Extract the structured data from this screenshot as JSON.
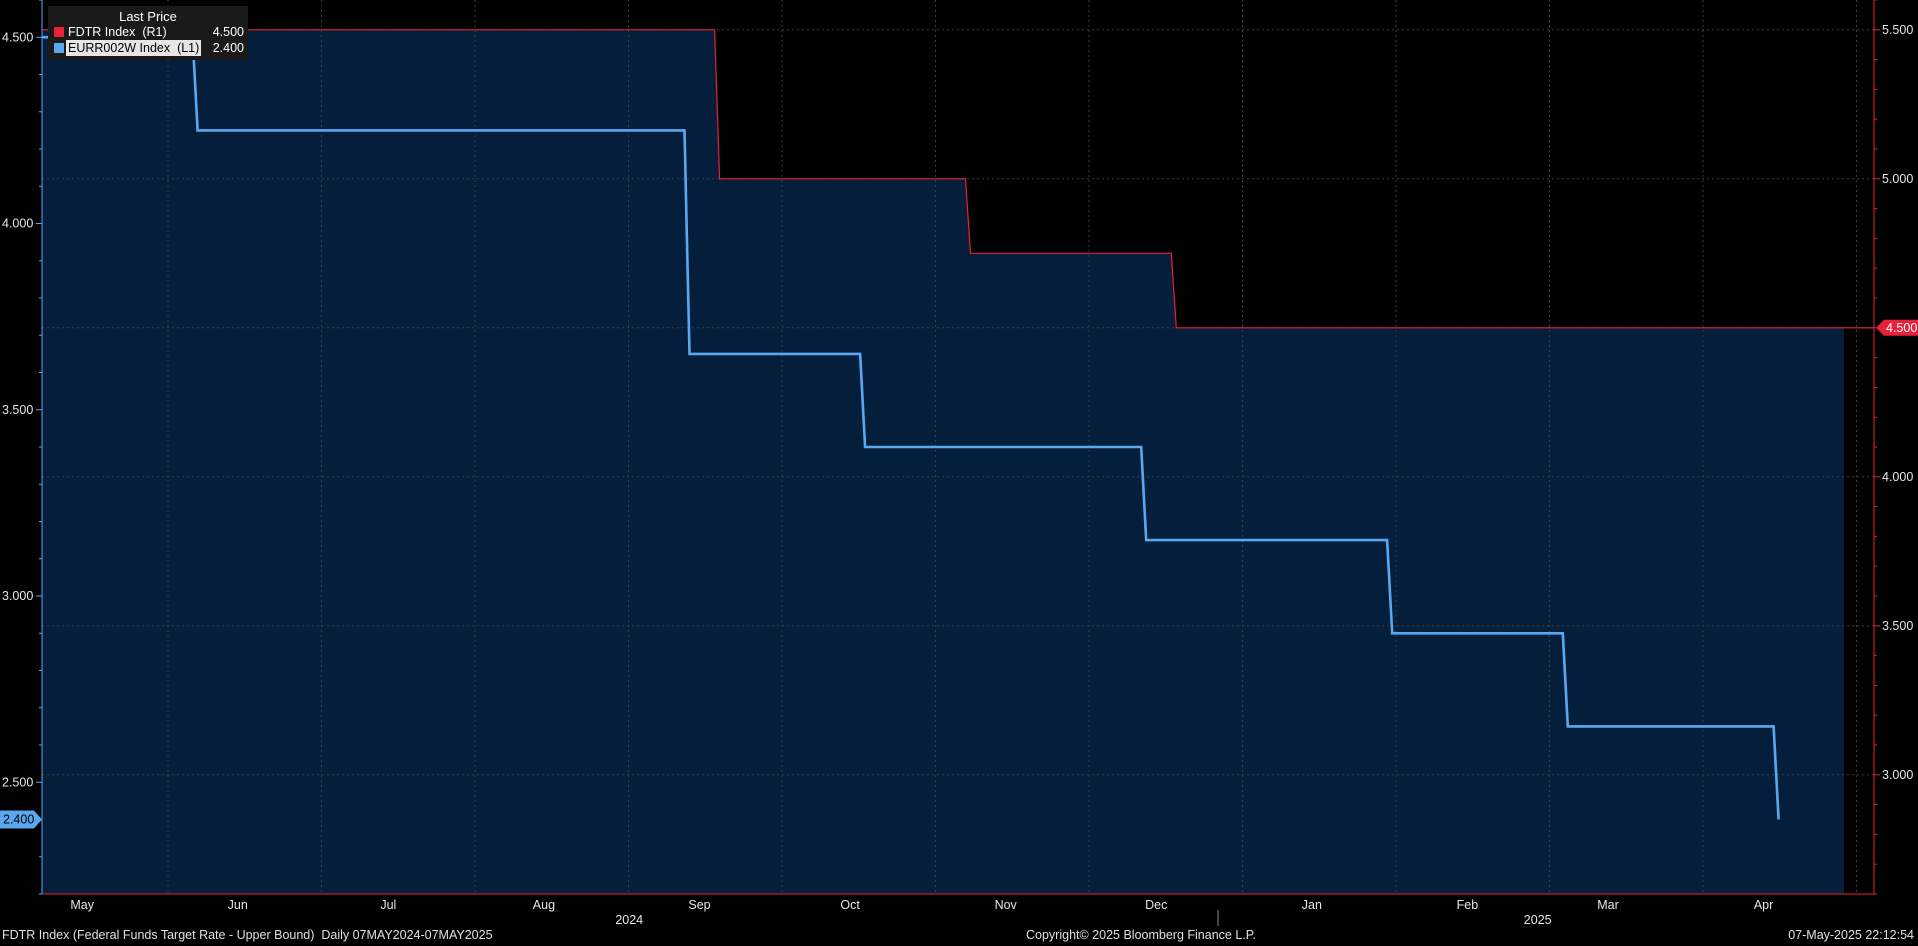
{
  "legend": {
    "title": "Last Price",
    "items": [
      {
        "name": "FDTR Index  (R1)",
        "value": "4.500",
        "color": "#e8213a"
      },
      {
        "name": "EURR002W Index  (L1)",
        "value": "2.400",
        "color": "#5aa8f0"
      }
    ]
  },
  "footer": {
    "left": "FDTR Index (Federal Funds Target Rate - Upper Bound)  Daily 07MAY2024-07MAY2025",
    "center": "Copyright© 2025 Bloomberg Finance L.P.",
    "right": "07-May-2025 22:12:54"
  },
  "chart_data": {
    "type": "line",
    "x_range": [
      "2024-05-07",
      "2025-05-07"
    ],
    "x_month_labels": [
      {
        "label": "May",
        "date": "2024-05-15"
      },
      {
        "label": "Jun",
        "date": "2024-06-15"
      },
      {
        "label": "Jul",
        "date": "2024-07-15"
      },
      {
        "label": "Aug",
        "date": "2024-08-15"
      },
      {
        "label": "Sep",
        "date": "2024-09-15"
      },
      {
        "label": "Oct",
        "date": "2024-10-15"
      },
      {
        "label": "Nov",
        "date": "2024-11-15"
      },
      {
        "label": "Dec",
        "date": "2024-12-15"
      },
      {
        "label": "Jan",
        "date": "2025-01-15"
      },
      {
        "label": "Feb",
        "date": "2025-02-15"
      },
      {
        "label": "Mar",
        "date": "2025-03-15"
      },
      {
        "label": "Apr",
        "date": "2025-04-15"
      }
    ],
    "x_year_labels": [
      {
        "label": "2024",
        "date": "2024-09-01"
      },
      {
        "label": "2025",
        "date": "2025-03-01"
      }
    ],
    "left_axis": {
      "min": 2.2,
      "max": 4.6,
      "ticks": [
        "2.500",
        "3.000",
        "3.500",
        "4.000",
        "4.500"
      ]
    },
    "right_axis": {
      "min": 2.6,
      "max": 5.6,
      "ticks": [
        "3.000",
        "3.500",
        "4.000",
        "4.500",
        "5.000",
        "5.500"
      ]
    },
    "grid": true,
    "legend_position": "top-left",
    "series": [
      {
        "name": "FDTR Index  (R1)",
        "axis": "right",
        "color": "#e8213a",
        "last_value_label": "4.500",
        "points": [
          [
            "2024-05-07",
            5.5
          ],
          [
            "2024-09-18",
            5.5
          ],
          [
            "2024-09-19",
            5.0
          ],
          [
            "2024-11-07",
            5.0
          ],
          [
            "2024-11-08",
            4.75
          ],
          [
            "2024-12-18",
            4.75
          ],
          [
            "2024-12-19",
            4.5
          ],
          [
            "2025-05-07",
            4.5
          ]
        ]
      },
      {
        "name": "EURR002W Index  (L1)",
        "axis": "left",
        "color": "#5aa8f0",
        "last_value_label": "2.400",
        "points": [
          [
            "2024-05-07",
            4.5
          ],
          [
            "2024-06-06",
            4.5
          ],
          [
            "2024-06-07",
            4.25
          ],
          [
            "2024-09-12",
            4.25
          ],
          [
            "2024-09-13",
            3.65
          ],
          [
            "2024-10-17",
            3.65
          ],
          [
            "2024-10-18",
            3.4
          ],
          [
            "2024-12-12",
            3.4
          ],
          [
            "2024-12-13",
            3.15
          ],
          [
            "2025-01-30",
            3.15
          ],
          [
            "2025-01-31",
            2.9
          ],
          [
            "2025-03-06",
            2.9
          ],
          [
            "2025-03-07",
            2.65
          ],
          [
            "2025-04-17",
            2.65
          ],
          [
            "2025-04-18",
            2.4
          ]
        ]
      }
    ]
  }
}
